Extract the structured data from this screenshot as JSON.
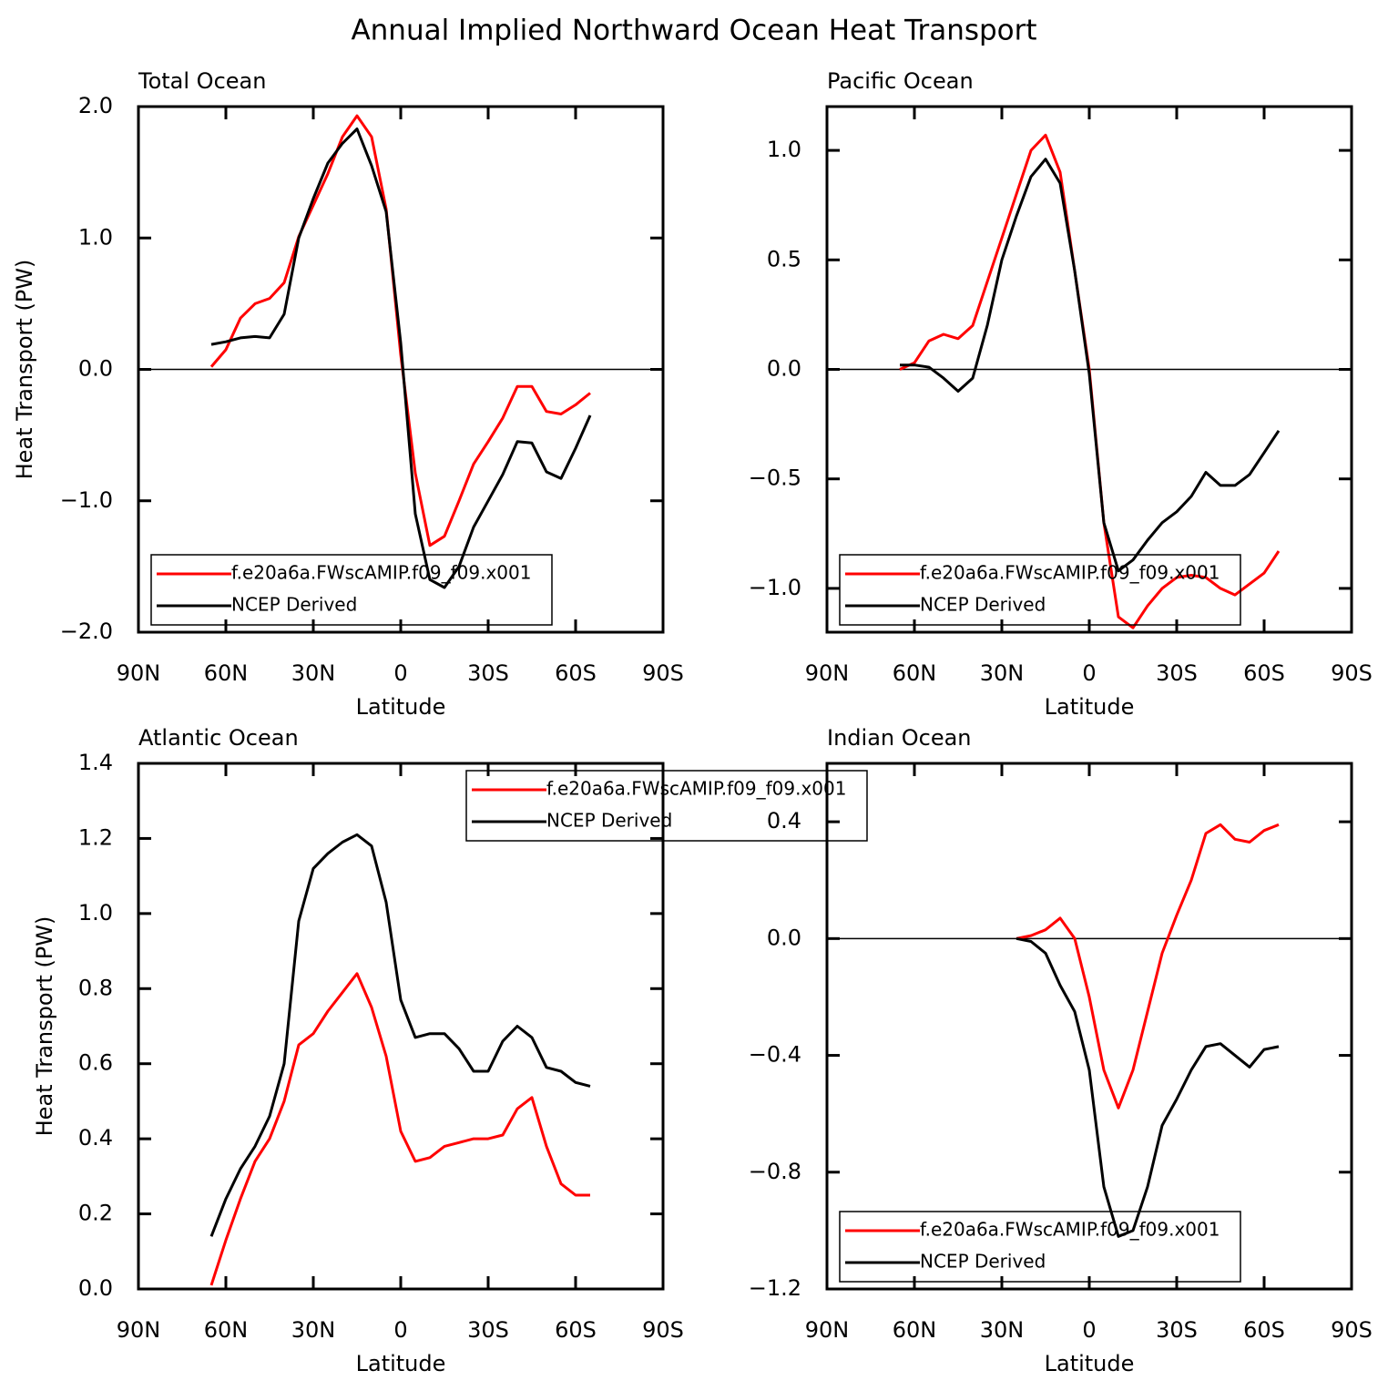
{
  "title": "Annual Implied Northward Ocean Heat Transport",
  "chart_data": [
    {
      "type": "line",
      "title": "Total Ocean",
      "xlabel": "Latitude",
      "ylabel": "Heat Transport (PW)",
      "x": [
        65,
        60,
        55,
        50,
        45,
        40,
        35,
        30,
        25,
        20,
        15,
        10,
        5,
        0,
        -5,
        -10,
        -15,
        -20,
        -25,
        -30,
        -35,
        -40,
        -45,
        -50,
        -55,
        -60,
        -65
      ],
      "xlim": [
        90,
        -90
      ],
      "xticks": [
        {
          "value": 90,
          "label": "90N"
        },
        {
          "value": 60,
          "label": "60N"
        },
        {
          "value": 30,
          "label": "30N"
        },
        0,
        {
          "value": -30,
          "label": "30S"
        },
        {
          "value": -60,
          "label": "60S"
        },
        {
          "value": -90,
          "label": "90S"
        }
      ],
      "ylim": [
        -2,
        2
      ],
      "yticks": [
        {
          "value": -2,
          "label": "−2.0"
        },
        {
          "value": -1,
          "label": "−1.0"
        },
        {
          "value": 0,
          "label": "0.0"
        },
        {
          "value": 1,
          "label": "1.0"
        },
        {
          "value": 2,
          "label": "2.0"
        }
      ],
      "zero_line": true,
      "legend": "lower left",
      "series": [
        {
          "name": "f.e20a6a.FWscAMIP.f09_f09.x001",
          "color": "#ff0000",
          "values": [
            0.02,
            0.15,
            0.39,
            0.5,
            0.54,
            0.66,
            1.01,
            1.25,
            1.49,
            1.77,
            1.93,
            1.77,
            1.22,
            0.11,
            -0.79,
            -1.34,
            -1.27,
            -1.0,
            -0.72,
            -0.55,
            -0.37,
            -0.13,
            -0.13,
            -0.32,
            -0.34,
            -0.27,
            -0.18
          ]
        },
        {
          "name": "NCEP Derived",
          "color": "#000000",
          "values": [
            0.19,
            0.21,
            0.24,
            0.25,
            0.24,
            0.42,
            1.0,
            1.3,
            1.57,
            1.72,
            1.83,
            1.55,
            1.2,
            0.2,
            -1.1,
            -1.6,
            -1.66,
            -1.5,
            -1.2,
            -1.0,
            -0.8,
            -0.55,
            -0.56,
            -0.78,
            -0.83,
            -0.6,
            -0.35
          ]
        }
      ]
    },
    {
      "type": "line",
      "title": "Pacific Ocean",
      "xlabel": "Latitude",
      "x": [
        65,
        60,
        55,
        50,
        45,
        40,
        35,
        30,
        25,
        20,
        15,
        10,
        5,
        0,
        -5,
        -10,
        -15,
        -20,
        -25,
        -30,
        -35,
        -40,
        -45,
        -50,
        -55,
        -60,
        -65
      ],
      "xlim": [
        90,
        -90
      ],
      "xticks": [
        {
          "value": 90,
          "label": "90N"
        },
        {
          "value": 60,
          "label": "60N"
        },
        {
          "value": 30,
          "label": "30N"
        },
        0,
        {
          "value": -30,
          "label": "30S"
        },
        {
          "value": -60,
          "label": "60S"
        },
        {
          "value": -90,
          "label": "90S"
        }
      ],
      "ylim": [
        -1.2,
        1.2
      ],
      "yticks": [
        {
          "value": -1,
          "label": "−1.0"
        },
        {
          "value": -0.5,
          "label": "−0.5"
        },
        {
          "value": 0,
          "label": "0.0"
        },
        0.5,
        {
          "value": 1,
          "label": "1.0"
        }
      ],
      "zero_line": true,
      "legend": "lower left",
      "series": [
        {
          "name": "f.e20a6a.FWscAMIP.f09_f09.x001",
          "color": "#ff0000",
          "values": [
            0.0,
            0.03,
            0.13,
            0.16,
            0.14,
            0.2,
            0.4,
            0.6,
            0.8,
            1.0,
            1.07,
            0.9,
            0.45,
            0.0,
            -0.7,
            -1.13,
            -1.18,
            -1.08,
            -1.0,
            -0.95,
            -0.94,
            -0.95,
            -1.0,
            -1.03,
            -0.98,
            -0.93,
            -0.83
          ]
        },
        {
          "name": "NCEP Derived",
          "color": "#000000",
          "values": [
            0.02,
            0.02,
            0.01,
            -0.04,
            -0.1,
            -0.04,
            0.2,
            0.5,
            0.7,
            0.88,
            0.96,
            0.85,
            0.45,
            -0.02,
            -0.7,
            -0.92,
            -0.87,
            -0.78,
            -0.7,
            -0.65,
            -0.58,
            -0.47,
            -0.53,
            -0.53,
            -0.48,
            -0.38,
            -0.28
          ]
        }
      ]
    },
    {
      "type": "line",
      "title": "Atlantic Ocean",
      "xlabel": "Latitude",
      "ylabel": "Heat Transport (PW)",
      "x": [
        65,
        60,
        55,
        50,
        45,
        40,
        35,
        30,
        25,
        20,
        15,
        10,
        5,
        0,
        -5,
        -10,
        -15,
        -20,
        -25,
        -30,
        -35,
        -40,
        -45,
        -50,
        -55,
        -60,
        -65
      ],
      "xlim": [
        90,
        -90
      ],
      "xticks": [
        {
          "value": 90,
          "label": "90N"
        },
        {
          "value": 60,
          "label": "60N"
        },
        {
          "value": 30,
          "label": "30N"
        },
        0,
        {
          "value": -30,
          "label": "30S"
        },
        {
          "value": -60,
          "label": "60S"
        },
        {
          "value": -90,
          "label": "90S"
        }
      ],
      "ylim": [
        0,
        1.4
      ],
      "yticks": [
        {
          "value": 0,
          "label": "0.0"
        },
        0.2,
        0.4,
        0.6,
        0.8,
        {
          "value": 1,
          "label": "1.0"
        },
        1.2,
        1.4
      ],
      "zero_line": false,
      "legend": "upper right",
      "series": [
        {
          "name": "f.e20a6a.FWscAMIP.f09_f09.x001",
          "color": "#ff0000",
          "values": [
            0.01,
            0.13,
            0.24,
            0.34,
            0.4,
            0.5,
            0.65,
            0.68,
            0.74,
            0.79,
            0.84,
            0.75,
            0.62,
            0.42,
            0.34,
            0.35,
            0.38,
            0.39,
            0.4,
            0.4,
            0.41,
            0.48,
            0.51,
            0.38,
            0.28,
            0.25,
            0.25
          ]
        },
        {
          "name": "NCEP Derived",
          "color": "#000000",
          "values": [
            0.14,
            0.24,
            0.32,
            0.38,
            0.46,
            0.6,
            0.98,
            1.12,
            1.16,
            1.19,
            1.21,
            1.18,
            1.03,
            0.77,
            0.67,
            0.68,
            0.68,
            0.64,
            0.58,
            0.58,
            0.66,
            0.7,
            0.67,
            0.59,
            0.58,
            0.55,
            0.54
          ]
        }
      ]
    },
    {
      "type": "line",
      "title": "Indian Ocean",
      "xlabel": "Latitude",
      "x": [
        65,
        60,
        55,
        50,
        45,
        40,
        35,
        30,
        25,
        20,
        15,
        10,
        5,
        0,
        -5,
        -10,
        -15,
        -20,
        -25,
        -30,
        -35,
        -40,
        -45,
        -50,
        -55,
        -60,
        -65
      ],
      "xlim": [
        90,
        -90
      ],
      "xticks": [
        {
          "value": 90,
          "label": "90N"
        },
        {
          "value": 60,
          "label": "60N"
        },
        {
          "value": 30,
          "label": "30N"
        },
        0,
        {
          "value": -30,
          "label": "30S"
        },
        {
          "value": -60,
          "label": "60S"
        },
        {
          "value": -90,
          "label": "90S"
        }
      ],
      "ylim": [
        -1.2,
        0.6
      ],
      "yticks": [
        {
          "value": -1.2,
          "label": "−1.2"
        },
        {
          "value": -0.8,
          "label": "−0.8"
        },
        {
          "value": -0.4,
          "label": "−0.4"
        },
        {
          "value": 0,
          "label": "0.0"
        },
        0.4
      ],
      "zero_line": true,
      "legend": "lower left",
      "series": [
        {
          "name": "f.e20a6a.FWscAMIP.f09_f09.x001",
          "color": "#ff0000",
          "values": [
            null,
            null,
            null,
            null,
            null,
            null,
            null,
            null,
            0.0,
            0.01,
            0.03,
            0.07,
            0.0,
            -0.2,
            -0.45,
            -0.58,
            -0.45,
            -0.25,
            -0.05,
            0.08,
            0.2,
            0.36,
            0.39,
            0.34,
            0.33,
            0.37,
            0.39
          ]
        },
        {
          "name": "NCEP Derived",
          "color": "#000000",
          "values": [
            null,
            null,
            null,
            null,
            null,
            null,
            null,
            null,
            0.0,
            -0.01,
            -0.05,
            -0.16,
            -0.25,
            -0.45,
            -0.85,
            -1.02,
            -1.0,
            -0.85,
            -0.64,
            -0.55,
            -0.45,
            -0.37,
            -0.36,
            -0.4,
            -0.44,
            -0.38,
            -0.37
          ]
        }
      ]
    }
  ]
}
